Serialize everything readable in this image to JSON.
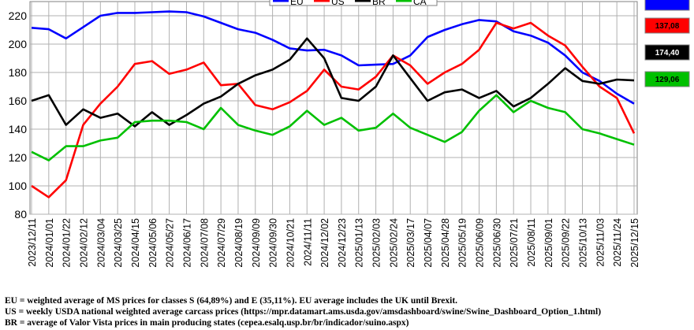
{
  "chart_data": {
    "type": "line",
    "ylim": [
      80,
      220
    ],
    "yticks": [
      80,
      100,
      120,
      140,
      160,
      180,
      200,
      220
    ],
    "grid": true,
    "legend_position": "top",
    "x": [
      "2023/12/11",
      "2024/01/01",
      "2024/01/22",
      "2024/02/12",
      "2024/03/04",
      "2024/03/25",
      "2024/04/15",
      "2024/05/06",
      "2024/05/27",
      "2024/06/17",
      "2024/07/08",
      "2024/07/29",
      "2024/08/19",
      "2024/09/09",
      "2024/09/30",
      "2024/10/21",
      "2024/11/11",
      "2024/12/02",
      "2024/12/23",
      "2025/01/13",
      "2025/02/03",
      "2025/02/24",
      "2025/03/17",
      "2025/04/07",
      "2025/04/28",
      "2025/05/19",
      "2025/06/09",
      "2025/06/30",
      "2025/07/21",
      "2025/08/11",
      "2025/09/01",
      "2025/09/22",
      "2025/10/13",
      "2025/11/03",
      "2025/11/24",
      "2025/12/15"
    ],
    "series": [
      {
        "name": "EU",
        "color": "#0000ff",
        "values": [
          211.5,
          210.5,
          204.0,
          212.0,
          220.0,
          222.0,
          222.0,
          222.5,
          223.0,
          222.5,
          219.5,
          215.0,
          210.5,
          208.0,
          203.0,
          197.0,
          195.5,
          196.0,
          192.0,
          185.0,
          185.5,
          186.0,
          192.0,
          205.0,
          210.0,
          214.0,
          217.0,
          216.0,
          209.0,
          206.0,
          201.0,
          192.0,
          180.0,
          174.0,
          165.0,
          158.0
        ]
      },
      {
        "name": "US",
        "color": "#ff0000",
        "values": [
          100.0,
          92.0,
          104.0,
          143.0,
          158.0,
          170.0,
          186.0,
          188.0,
          179.0,
          182.0,
          187.0,
          171.0,
          172.0,
          157.0,
          154.0,
          159.0,
          167.0,
          182.0,
          170.0,
          168.0,
          177.0,
          192.0,
          185.0,
          172.0,
          180.0,
          186.0,
          196.0,
          215.0,
          211.0,
          215.0,
          206.0,
          199.0,
          184.0,
          170.0,
          162.0,
          137.08
        ]
      },
      {
        "name": "BR",
        "color": "#000000",
        "values": [
          160.0,
          164.0,
          143.0,
          154.0,
          148.0,
          151.0,
          142.0,
          152.0,
          143.0,
          150.0,
          158.0,
          163.0,
          172.0,
          178.0,
          182.0,
          189.0,
          204.0,
          190.0,
          162.0,
          160.0,
          170.0,
          192.0,
          176.0,
          160.0,
          166.0,
          168.0,
          162.0,
          167.0,
          156.0,
          162.0,
          172.0,
          183.0,
          174.0,
          172.0,
          175.0,
          174.4
        ]
      },
      {
        "name": "CA",
        "color": "#00c000",
        "values": [
          124.0,
          118.0,
          128.0,
          128.0,
          132.0,
          134.0,
          145.0,
          146.0,
          146.0,
          145.0,
          140.0,
          155.0,
          143.0,
          139.0,
          136.0,
          142.0,
          153.0,
          143.0,
          148.0,
          139.0,
          141.0,
          151.0,
          141.0,
          136.0,
          131.0,
          138.0,
          153.0,
          164.0,
          152.0,
          160.0,
          155.0,
          152.0,
          140.0,
          137.0,
          133.0,
          129.06
        ]
      }
    ],
    "end_labels": [
      {
        "series": "EU",
        "text": "",
        "fill": "#0000ff",
        "text_color": "#ffffff"
      },
      {
        "series": "US",
        "text": "137,08",
        "fill": "#ff0000",
        "text_color": "#000000"
      },
      {
        "series": "BR",
        "text": "174,40",
        "fill": "#000000",
        "text_color": "#ffffff"
      },
      {
        "series": "CA",
        "text": "129,06",
        "fill": "#00c000",
        "text_color": "#000000"
      }
    ]
  },
  "notes": {
    "eu": "EU = weighted average of MS prices for classes S (64,89%) and E (35,11%). EU average includes the UK until Brexit.",
    "us": "US = weekly USDA national weighted average carcass prices (https://mpr.datamart.ams.usda.gov/amsdashboard/swine/Swine_Dashboard_Option_1.html)",
    "br": "BR = average of Valor Vista prices in main producing states (cepea.esalq.usp.br/br/indicador/suino.aspx)"
  }
}
